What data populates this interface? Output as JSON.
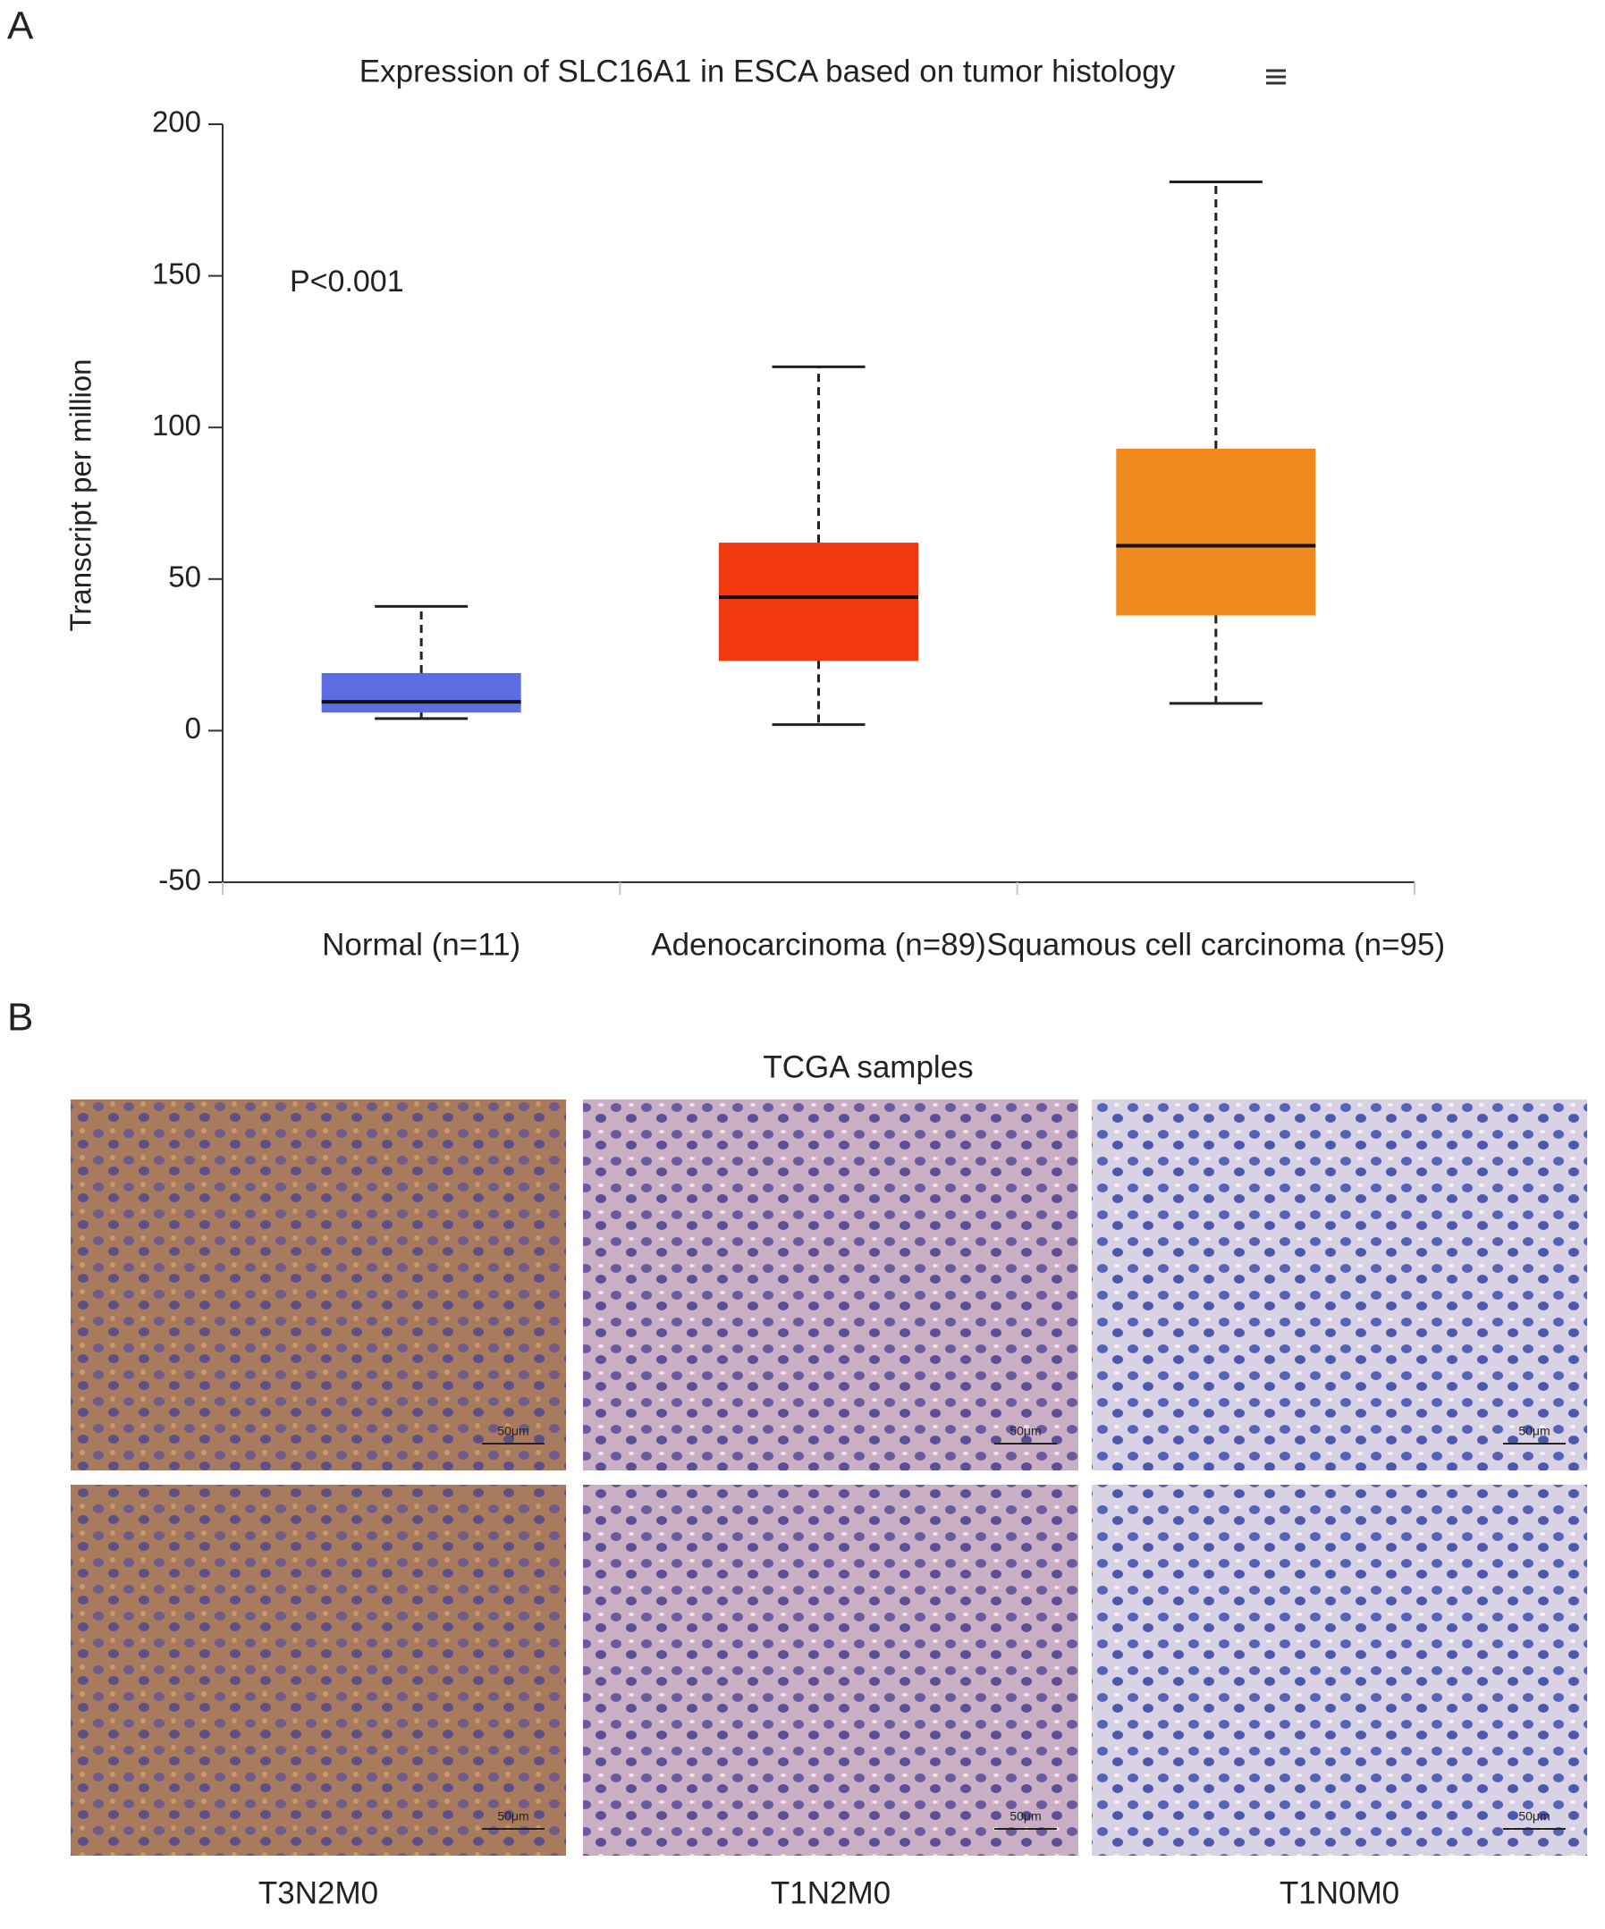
{
  "panel_labels": [
    "A",
    "B"
  ],
  "chart_data": {
    "type": "box",
    "title": "Expression of SLC16A1 in ESCA based on tumor histology",
    "y_label": "Transcript per million",
    "annotation": "P<0.001",
    "categories": [
      "Normal (n=11)",
      "Adenocarcinoma (n=89)",
      "Squamous cell carcinoma (n=95)"
    ],
    "boxes": [
      {
        "low": 4,
        "q1": 6,
        "median": 9.5,
        "q3": 19,
        "high": 41,
        "color": "#5b6de0"
      },
      {
        "low": 2,
        "q1": 23,
        "median": 44,
        "q3": 62,
        "high": 120,
        "color": "#f2380f"
      },
      {
        "low": 9,
        "q1": 38,
        "median": 61,
        "q3": 93,
        "high": 181,
        "color": "#f08a1e"
      }
    ],
    "ylim": [
      -50,
      200
    ],
    "yticks": [
      -50,
      0,
      50,
      100,
      150,
      200
    ]
  },
  "panel_b": {
    "title": "TCGA samples",
    "columns": [
      "T3N2M0",
      "T1N2M0",
      "T1N0M0"
    ],
    "scale_bar": "50μm"
  }
}
